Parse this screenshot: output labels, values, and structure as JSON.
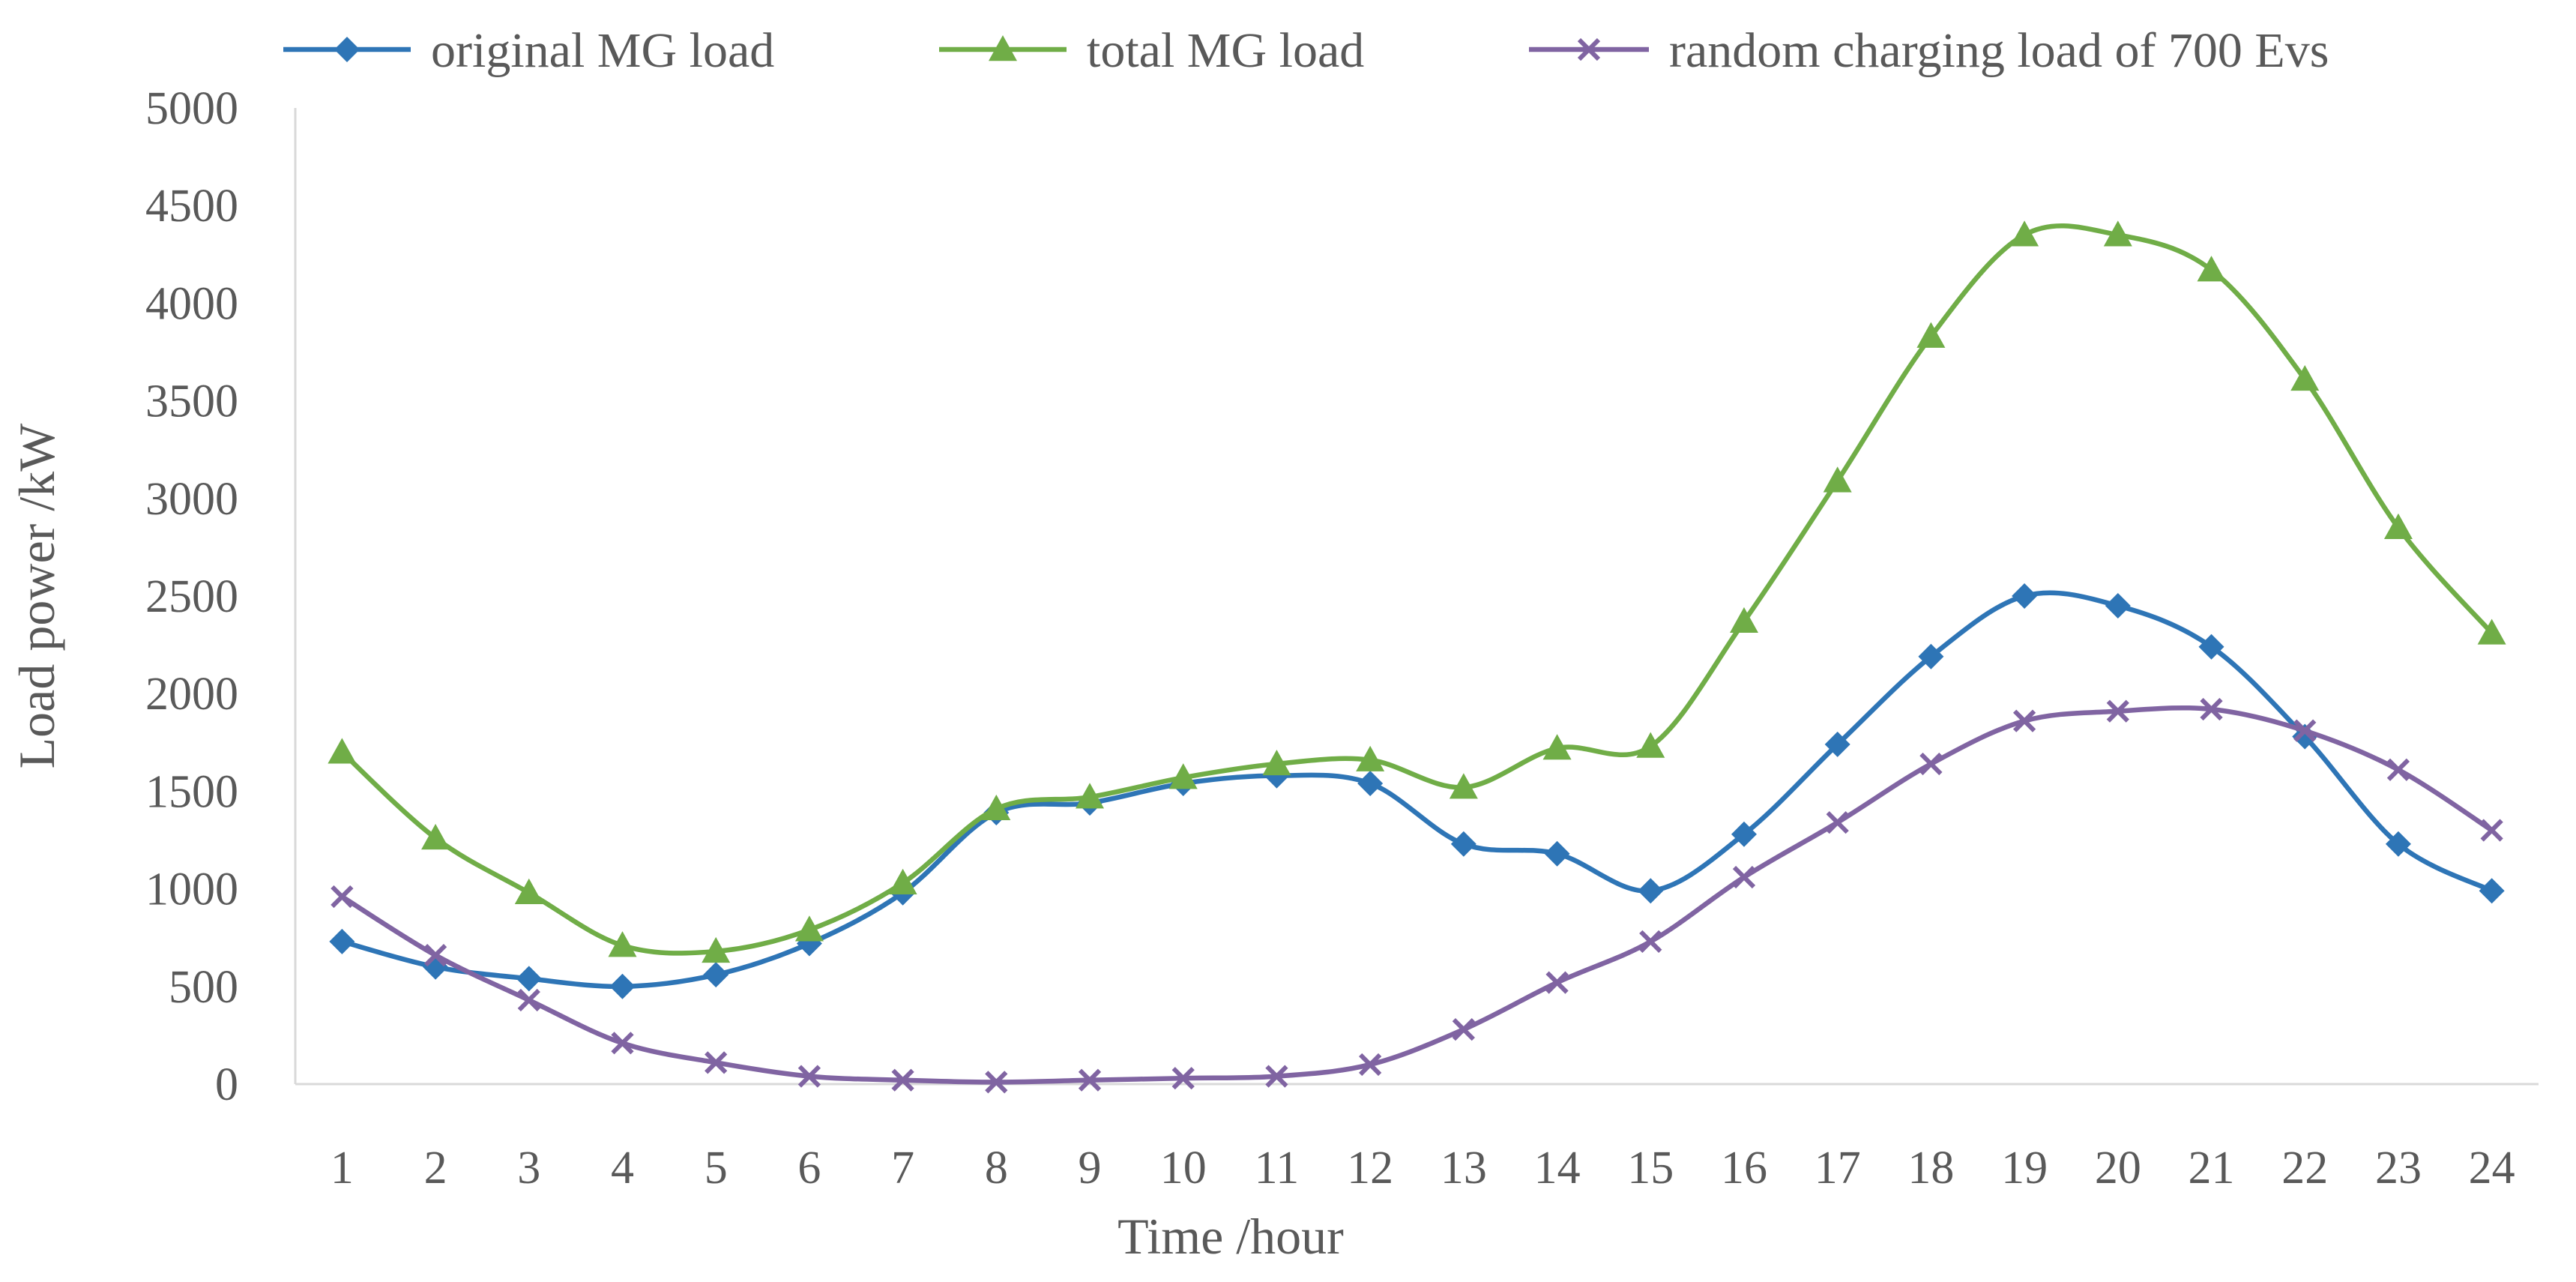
{
  "chart_data": {
    "type": "line",
    "xlabel": "Time /hour",
    "ylabel": "Load power /kW",
    "x": [
      "1",
      "2",
      "3",
      "4",
      "5",
      "6",
      "7",
      "8",
      "9",
      "10",
      "11",
      "12",
      "13",
      "14",
      "15",
      "16",
      "17",
      "18",
      "19",
      "20",
      "21",
      "22",
      "23",
      "24"
    ],
    "yticks": [
      "0",
      "500",
      "1000",
      "1500",
      "2000",
      "2500",
      "3000",
      "3500",
      "4000",
      "4500",
      "5000"
    ],
    "ylim": [
      0,
      5000
    ],
    "grid": false,
    "legend_position": "top",
    "series": [
      {
        "name": "original MG load",
        "color": "#2e75b6",
        "marker": "diamond",
        "values": [
          730,
          600,
          540,
          500,
          560,
          720,
          980,
          1390,
          1440,
          1540,
          1580,
          1540,
          1230,
          1180,
          990,
          1280,
          1740,
          2190,
          2500,
          2450,
          2240,
          1780,
          1230,
          990
        ]
      },
      {
        "name": "total MG load",
        "color": "#70ad47",
        "marker": "triangle",
        "values": [
          1700,
          1260,
          980,
          710,
          680,
          790,
          1030,
          1410,
          1470,
          1570,
          1640,
          1660,
          1520,
          1720,
          1730,
          2370,
          3090,
          3830,
          4350,
          4350,
          4170,
          3610,
          2850,
          2310
        ]
      },
      {
        "name": "random charging load of 700 Evs",
        "color": "#8064a2",
        "marker": "x",
        "values": [
          960,
          660,
          430,
          210,
          110,
          40,
          20,
          10,
          20,
          30,
          40,
          100,
          280,
          520,
          730,
          1060,
          1340,
          1640,
          1860,
          1910,
          1920,
          1810,
          1610,
          1300
        ]
      }
    ]
  }
}
